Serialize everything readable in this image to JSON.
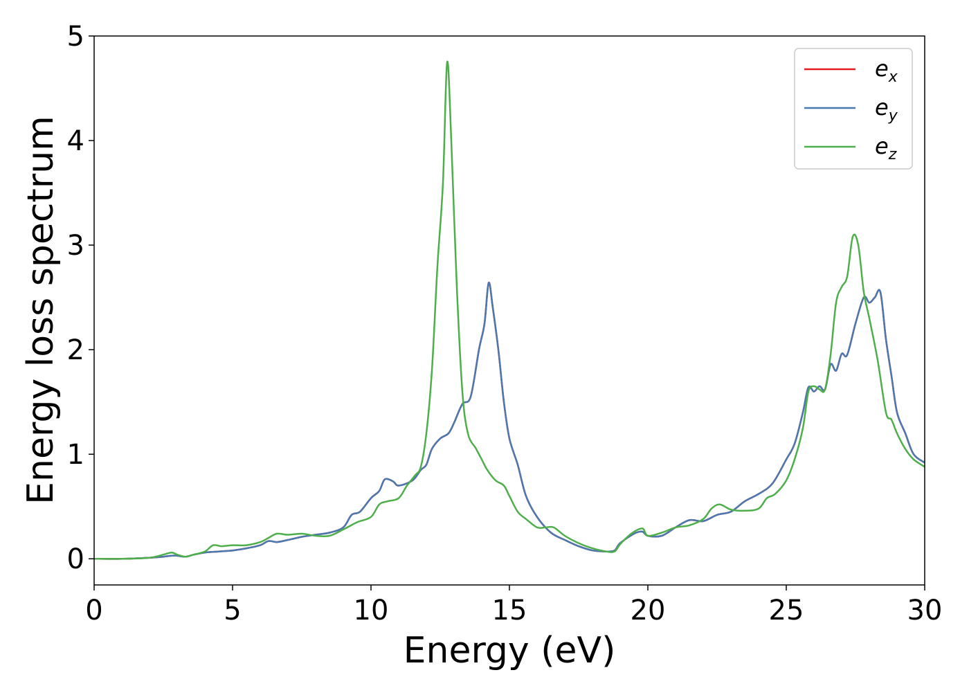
{
  "chart_data": {
    "type": "line",
    "title": "",
    "xlabel": "Energy (eV)",
    "ylabel": "Energy loss spectrum",
    "xlim": [
      0,
      30
    ],
    "ylim": [
      -0.25,
      5
    ],
    "xticks": [
      0,
      5,
      10,
      15,
      20,
      25,
      30
    ],
    "yticks": [
      0,
      1,
      2,
      3,
      4,
      5
    ],
    "grid": false,
    "legend_position": "top-right",
    "series": [
      {
        "name": "e_x",
        "legend": {
          "base": "e",
          "sub": "x"
        },
        "color": "#e41a1c",
        "x": [
          0,
          1,
          2,
          2.5,
          2.8,
          3.0,
          3.3,
          3.6,
          4.0,
          4.5,
          5.0,
          5.5,
          6.0,
          6.3,
          6.6,
          7.0,
          7.5,
          8.0,
          8.5,
          9.0,
          9.3,
          9.6,
          10.0,
          10.3,
          10.5,
          10.8,
          11.0,
          11.5,
          11.8,
          12.0,
          12.2,
          12.5,
          12.8,
          13.0,
          13.3,
          13.6,
          13.9,
          14.1,
          14.25,
          14.4,
          14.6,
          14.8,
          15.0,
          15.3,
          15.6,
          16.0,
          16.5,
          17.0,
          17.5,
          18.0,
          18.5,
          18.8,
          19.0,
          19.5,
          19.8,
          20.0,
          20.5,
          21.0,
          21.5,
          22.0,
          22.5,
          23.0,
          23.5,
          24.0,
          24.5,
          25.0,
          25.3,
          25.6,
          25.8,
          26.0,
          26.2,
          26.4,
          26.6,
          26.8,
          27.0,
          27.2,
          27.5,
          27.8,
          28.0,
          28.2,
          28.4,
          28.6,
          28.8,
          29.0,
          29.3,
          29.6,
          30.0
        ],
        "y": [
          0,
          0,
          0.01,
          0.02,
          0.03,
          0.03,
          0.02,
          0.04,
          0.06,
          0.07,
          0.08,
          0.1,
          0.13,
          0.17,
          0.16,
          0.18,
          0.21,
          0.23,
          0.25,
          0.3,
          0.42,
          0.45,
          0.58,
          0.65,
          0.76,
          0.74,
          0.7,
          0.75,
          0.85,
          0.9,
          1.05,
          1.15,
          1.2,
          1.3,
          1.48,
          1.55,
          2.0,
          2.25,
          2.64,
          2.4,
          2.0,
          1.5,
          1.15,
          0.9,
          0.6,
          0.4,
          0.25,
          0.18,
          0.12,
          0.08,
          0.07,
          0.08,
          0.15,
          0.24,
          0.26,
          0.22,
          0.22,
          0.3,
          0.37,
          0.36,
          0.42,
          0.45,
          0.55,
          0.62,
          0.72,
          0.95,
          1.1,
          1.4,
          1.64,
          1.6,
          1.65,
          1.62,
          1.86,
          1.8,
          1.96,
          1.95,
          2.25,
          2.5,
          2.45,
          2.5,
          2.55,
          2.1,
          1.75,
          1.4,
          1.2,
          1.0,
          0.92
        ]
      },
      {
        "name": "e_y",
        "legend": {
          "base": "e",
          "sub": "y"
        },
        "color": "#4a78b0",
        "x": [
          0,
          1,
          2,
          2.5,
          2.8,
          3.0,
          3.3,
          3.6,
          4.0,
          4.5,
          5.0,
          5.5,
          6.0,
          6.3,
          6.6,
          7.0,
          7.5,
          8.0,
          8.5,
          9.0,
          9.3,
          9.6,
          10.0,
          10.3,
          10.5,
          10.8,
          11.0,
          11.5,
          11.8,
          12.0,
          12.2,
          12.5,
          12.8,
          13.0,
          13.3,
          13.6,
          13.9,
          14.1,
          14.25,
          14.4,
          14.6,
          14.8,
          15.0,
          15.3,
          15.6,
          16.0,
          16.5,
          17.0,
          17.5,
          18.0,
          18.5,
          18.8,
          19.0,
          19.5,
          19.8,
          20.0,
          20.5,
          21.0,
          21.5,
          22.0,
          22.5,
          23.0,
          23.5,
          24.0,
          24.5,
          25.0,
          25.3,
          25.6,
          25.8,
          26.0,
          26.2,
          26.4,
          26.6,
          26.8,
          27.0,
          27.2,
          27.5,
          27.8,
          28.0,
          28.2,
          28.4,
          28.6,
          28.8,
          29.0,
          29.3,
          29.6,
          30.0
        ],
        "y": [
          0,
          0,
          0.01,
          0.02,
          0.03,
          0.03,
          0.02,
          0.04,
          0.06,
          0.07,
          0.08,
          0.1,
          0.13,
          0.17,
          0.16,
          0.18,
          0.21,
          0.23,
          0.25,
          0.3,
          0.42,
          0.45,
          0.58,
          0.65,
          0.76,
          0.74,
          0.7,
          0.75,
          0.85,
          0.9,
          1.05,
          1.15,
          1.2,
          1.3,
          1.48,
          1.55,
          2.0,
          2.25,
          2.64,
          2.4,
          2.0,
          1.5,
          1.15,
          0.9,
          0.6,
          0.4,
          0.25,
          0.18,
          0.12,
          0.08,
          0.07,
          0.08,
          0.15,
          0.24,
          0.26,
          0.22,
          0.22,
          0.3,
          0.37,
          0.36,
          0.42,
          0.45,
          0.55,
          0.62,
          0.72,
          0.95,
          1.1,
          1.4,
          1.64,
          1.6,
          1.65,
          1.62,
          1.86,
          1.8,
          1.96,
          1.95,
          2.25,
          2.5,
          2.45,
          2.5,
          2.55,
          2.1,
          1.75,
          1.4,
          1.2,
          1.0,
          0.92
        ]
      },
      {
        "name": "e_z",
        "legend": {
          "base": "e",
          "sub": "z"
        },
        "color": "#4daf4a",
        "x": [
          0,
          1,
          2,
          2.5,
          2.8,
          3.0,
          3.3,
          3.6,
          4.0,
          4.3,
          4.6,
          5.0,
          5.5,
          6.0,
          6.3,
          6.6,
          7.0,
          7.5,
          8.0,
          8.5,
          9.0,
          9.5,
          10.0,
          10.3,
          10.6,
          11.0,
          11.3,
          11.6,
          11.8,
          12.0,
          12.2,
          12.4,
          12.6,
          12.75,
          12.9,
          13.1,
          13.3,
          13.5,
          13.8,
          14.0,
          14.2,
          14.5,
          14.8,
          15.0,
          15.3,
          15.6,
          16.0,
          16.3,
          16.6,
          17.0,
          17.5,
          18.0,
          18.5,
          18.8,
          19.0,
          19.4,
          19.8,
          20.0,
          20.5,
          21.0,
          21.5,
          22.0,
          22.3,
          22.6,
          23.0,
          23.5,
          24.0,
          24.3,
          24.6,
          25.0,
          25.3,
          25.6,
          25.8,
          26.0,
          26.2,
          26.4,
          26.6,
          26.8,
          27.0,
          27.2,
          27.4,
          27.6,
          27.8,
          28.0,
          28.3,
          28.6,
          28.8,
          29.0,
          29.3,
          29.6,
          30.0
        ],
        "y": [
          0,
          0,
          0.01,
          0.04,
          0.06,
          0.04,
          0.02,
          0.04,
          0.07,
          0.13,
          0.12,
          0.13,
          0.13,
          0.16,
          0.2,
          0.24,
          0.23,
          0.24,
          0.22,
          0.22,
          0.28,
          0.35,
          0.4,
          0.52,
          0.55,
          0.58,
          0.7,
          0.8,
          0.88,
          1.2,
          1.8,
          2.8,
          3.6,
          4.75,
          4.0,
          2.6,
          1.6,
          1.2,
          1.05,
          0.95,
          0.85,
          0.75,
          0.7,
          0.6,
          0.45,
          0.38,
          0.3,
          0.3,
          0.3,
          0.22,
          0.15,
          0.1,
          0.07,
          0.07,
          0.14,
          0.24,
          0.29,
          0.22,
          0.25,
          0.3,
          0.32,
          0.38,
          0.48,
          0.52,
          0.47,
          0.46,
          0.48,
          0.58,
          0.62,
          0.75,
          0.95,
          1.25,
          1.6,
          1.65,
          1.62,
          1.62,
          1.95,
          2.45,
          2.6,
          2.7,
          3.08,
          3.0,
          2.55,
          2.3,
          1.9,
          1.4,
          1.33,
          1.2,
          1.05,
          0.95,
          0.88
        ]
      }
    ]
  }
}
